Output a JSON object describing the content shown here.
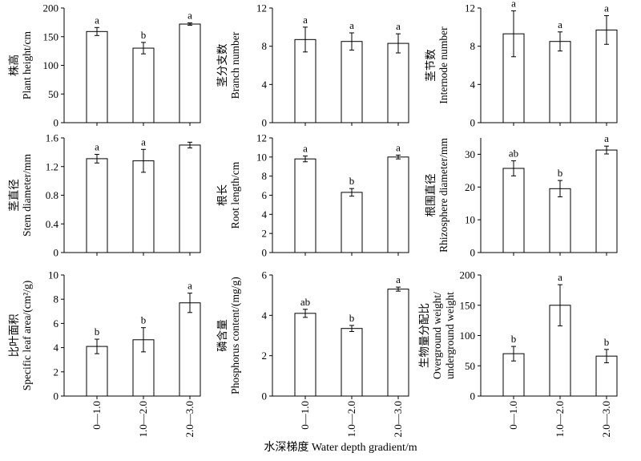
{
  "figure": {
    "shared_xlabel": "水深梯度 Water depth gradient/m",
    "categories": [
      "0—1.0",
      "1.0—2.0",
      "2.0—3.0"
    ]
  },
  "chart_data": [
    {
      "type": "bar",
      "ylabel_cn": "株高",
      "ylabel_en": "Plant height/cm",
      "ylim": [
        0,
        200
      ],
      "yticks": [
        0,
        50,
        100,
        150,
        200
      ],
      "categories": [
        "0—1.0",
        "1.0—2.0",
        "2.0—3.0"
      ],
      "values": [
        159,
        130,
        172
      ],
      "errors": [
        7,
        10,
        2
      ],
      "letters": [
        "a",
        "b",
        "a"
      ]
    },
    {
      "type": "bar",
      "ylabel_cn": "茎分支数",
      "ylabel_en": "Branch number",
      "ylim": [
        0,
        12
      ],
      "yticks": [
        0,
        4,
        8,
        12
      ],
      "categories": [
        "0—1.0",
        "1.0—2.0",
        "2.0—3.0"
      ],
      "values": [
        8.7,
        8.5,
        8.3
      ],
      "errors": [
        1.3,
        0.9,
        1.0
      ],
      "letters": [
        "a",
        "a",
        "a"
      ]
    },
    {
      "type": "bar",
      "ylabel_cn": "茎节数",
      "ylabel_en": "Internode number",
      "ylim": [
        0,
        12
      ],
      "yticks": [
        0,
        4,
        8,
        12
      ],
      "categories": [
        "0—1.0",
        "1.0—2.0",
        "2.0—3.0"
      ],
      "values": [
        9.3,
        8.5,
        9.7
      ],
      "errors": [
        2.4,
        1.0,
        1.5
      ],
      "letters": [
        "a",
        "a",
        "a"
      ]
    },
    {
      "type": "bar",
      "ylabel_cn": "茎直径",
      "ylabel_en": "Stem diameter/mm",
      "ylim": [
        0,
        1.6
      ],
      "yticks": [
        "0",
        "0.4",
        "0.8",
        "1.2",
        "1.6"
      ],
      "categories": [
        "0—1.0",
        "1.0—2.0",
        "2.0—3.0"
      ],
      "values": [
        1.31,
        1.28,
        1.5
      ],
      "errors": [
        0.06,
        0.16,
        0.04
      ],
      "letters": [
        "a",
        "a",
        ""
      ]
    },
    {
      "type": "bar",
      "ylabel_cn": "根长",
      "ylabel_en": "Root length/cm",
      "ylim": [
        0,
        12
      ],
      "yticks": [
        0,
        2,
        4,
        6,
        8,
        10,
        12
      ],
      "categories": [
        "0—1.0",
        "1.0—2.0",
        "2.0—3.0"
      ],
      "values": [
        9.8,
        6.3,
        10.0
      ],
      "errors": [
        0.3,
        0.4,
        0.2
      ],
      "letters": [
        "a",
        "b",
        "a"
      ]
    },
    {
      "type": "bar",
      "ylabel_cn": "根围直径",
      "ylabel_en": "Rhizosphere diameter/mm",
      "ylim": [
        0,
        35
      ],
      "yticks": [
        0,
        10,
        20,
        30
      ],
      "categories": [
        "0—1.0",
        "1.0—2.0",
        "2.0—3.0"
      ],
      "values": [
        25.7,
        19.5,
        31.3
      ],
      "errors": [
        2.3,
        2.5,
        1.2
      ],
      "letters": [
        "ab",
        "b",
        "a"
      ]
    },
    {
      "type": "bar",
      "ylabel_cn": "比叶面积",
      "ylabel_en": "Specific leaf area/(cm²/g)",
      "ylim": [
        0,
        10
      ],
      "yticks": [
        0,
        2,
        4,
        6,
        8,
        10
      ],
      "categories": [
        "0—1.0",
        "1.0—2.0",
        "2.0—3.0"
      ],
      "values": [
        4.1,
        4.65,
        7.7
      ],
      "errors": [
        0.6,
        1.0,
        0.8
      ],
      "letters": [
        "b",
        "b",
        "a"
      ]
    },
    {
      "type": "bar",
      "ylabel_cn": "磷含量",
      "ylabel_en": "Phosphorus content/(mg/g)",
      "ylim": [
        0,
        6
      ],
      "yticks": [
        0,
        2,
        4,
        6
      ],
      "categories": [
        "0—1.0",
        "1.0—2.0",
        "2.0—3.0"
      ],
      "values": [
        4.1,
        3.35,
        5.3
      ],
      "errors": [
        0.2,
        0.15,
        0.1
      ],
      "letters": [
        "ab",
        "b",
        "a"
      ]
    },
    {
      "type": "bar",
      "ylabel_cn": "生物量分配比",
      "ylabel_en": "Overground weight/",
      "ylabel_en2": "underground weight",
      "ylim": [
        0,
        200
      ],
      "yticks": [
        0,
        50,
        100,
        150,
        200
      ],
      "categories": [
        "0—1.0",
        "1.0—2.0",
        "2.0—3.0"
      ],
      "values": [
        70,
        150,
        66
      ],
      "errors": [
        12,
        34,
        11
      ],
      "letters": [
        "b",
        "a",
        "b"
      ]
    }
  ]
}
